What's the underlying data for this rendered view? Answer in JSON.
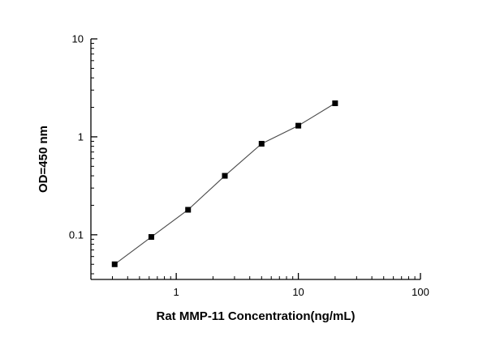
{
  "figure": {
    "background_color": "#ffffff"
  },
  "chart_data": {
    "type": "line",
    "x": [
      0.313,
      0.625,
      1.25,
      2.5,
      5,
      10,
      20
    ],
    "y": [
      0.05,
      0.095,
      0.18,
      0.4,
      0.85,
      1.3,
      2.2
    ],
    "title": "",
    "xlabel": "Rat MMP-11  Concentration(ng/mL)",
    "ylabel": "OD=450 nm",
    "xscale": "log",
    "yscale": "log",
    "xlim": [
      0.2,
      100
    ],
    "ylim": [
      0.035,
      10
    ],
    "x_major_ticks": [
      1,
      10,
      100
    ],
    "x_major_tick_labels": [
      "1",
      "10",
      "100"
    ],
    "y_major_ticks": [
      0.1,
      1,
      10
    ],
    "y_major_tick_labels": [
      "0.1",
      "1",
      "10"
    ],
    "grid": "off",
    "legend": "none",
    "marker": "square",
    "marker_color": "#000000",
    "line_color": "#4a4a4a",
    "axis_color": "#000000"
  }
}
